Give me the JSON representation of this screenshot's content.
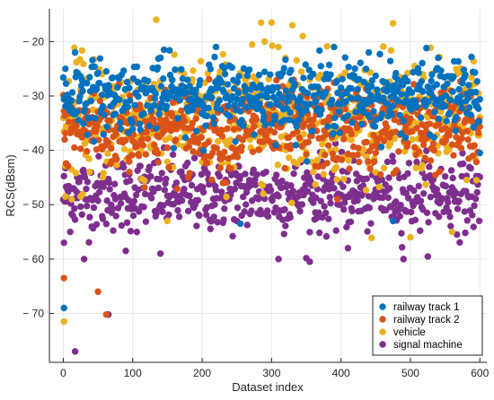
{
  "chart_data": {
    "type": "scatter",
    "title": "",
    "xlabel": "Dataset index",
    "ylabel": "RCS(dBsm)",
    "xlim": [
      -20,
      610
    ],
    "ylim": [
      -79,
      -14
    ],
    "xticks": [
      0,
      100,
      200,
      300,
      400,
      500,
      600
    ],
    "yticks": [
      -20,
      -30,
      -40,
      -50,
      -60,
      -70
    ],
    "grid": true,
    "legend_position": "bottom-right",
    "series": [
      {
        "name": "railway track 1",
        "color": "#0072BD",
        "mean": -30,
        "spread": 3.2,
        "outliers": [
          [
            1,
            -69
          ],
          [
            3,
            -25
          ],
          [
            17,
            -22
          ],
          [
            145,
            -21.5
          ],
          [
            220,
            -21
          ],
          [
            390,
            -21
          ],
          [
            440,
            -22
          ],
          [
            540,
            -23
          ],
          [
            595,
            -31
          ],
          [
            600,
            -40.5
          ],
          [
            255,
            -53.5
          ],
          [
            475,
            -53
          ]
        ]
      },
      {
        "name": "railway track 2",
        "color": "#D95319",
        "mean": -36,
        "spread": 3.8,
        "outliers": [
          [
            1,
            -63.5
          ],
          [
            50,
            -66
          ],
          [
            62,
            -70.2
          ],
          [
            2,
            -38
          ],
          [
            95,
            -44
          ],
          [
            180,
            -45
          ],
          [
            230,
            -46
          ],
          [
            395,
            -49
          ],
          [
            590,
            -41
          ]
        ]
      },
      {
        "name": "vehicle",
        "color": "#EDB120",
        "mean": -34,
        "spread": 5.5,
        "outliers": [
          [
            1,
            -71.5
          ],
          [
            285,
            -16.5
          ],
          [
            300,
            -16.5
          ],
          [
            330,
            -17
          ],
          [
            345,
            -19
          ],
          [
            290,
            -20
          ],
          [
            310,
            -21
          ],
          [
            320,
            -23
          ],
          [
            3,
            -48.5
          ],
          [
            12,
            -49
          ],
          [
            25,
            -48.5
          ],
          [
            150,
            -53
          ],
          [
            500,
            -56
          ],
          [
            560,
            -55
          ]
        ]
      },
      {
        "name": "signal machine",
        "color": "#7E2F8E",
        "mean": -48,
        "spread": 3.4,
        "outliers": [
          [
            17,
            -77
          ],
          [
            65,
            -70.2
          ],
          [
            30,
            -60
          ],
          [
            1,
            -57
          ],
          [
            90,
            -58.5
          ],
          [
            140,
            -59
          ],
          [
            310,
            -60
          ],
          [
            355,
            -60.5
          ],
          [
            410,
            -58
          ],
          [
            490,
            -60
          ],
          [
            8,
            -49
          ],
          [
            250,
            -53
          ]
        ]
      }
    ]
  }
}
